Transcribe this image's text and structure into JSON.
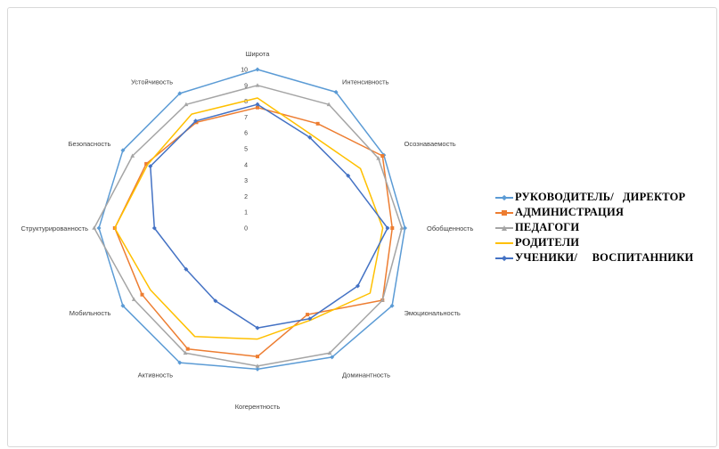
{
  "chart_data": {
    "type": "radar",
    "title": "",
    "axes": [
      "Широта",
      "Интенсивность",
      "Осознаваемость",
      "Обобщенность",
      "Эмоциональность",
      "Доминантность",
      "Когерентность",
      "Активность",
      "Мобильность",
      "Структурированность",
      "Безопасность",
      "Устойчивость"
    ],
    "ticks": [
      "0",
      "1",
      "2",
      "3",
      "4",
      "5",
      "6",
      "7",
      "8",
      "9",
      "10"
    ],
    "range": [
      0,
      10
    ],
    "grid": false,
    "legend_position": "right",
    "series": [
      {
        "name": "РУКОВОДИТЕЛЬ/   ДИРЕКТОР",
        "color": "#5b9bd5",
        "marker": "diamond",
        "values": [
          10,
          9.9,
          9.2,
          9.3,
          9.8,
          9.4,
          8.9,
          9.8,
          9.8,
          10,
          9.8,
          9.8
        ]
      },
      {
        "name": "АДМИНИСТРАЦИЯ",
        "color": "#ed7d31",
        "marker": "square",
        "values": [
          7.6,
          7.6,
          9.1,
          8.5,
          9.1,
          6.3,
          8.1,
          8.8,
          8.4,
          9,
          8.1,
          7.7
        ]
      },
      {
        "name": "ПЕДАГОГИ",
        "color": "#a5a5a5",
        "marker": "triangle",
        "values": [
          9,
          9,
          8.8,
          9.1,
          9.1,
          9.1,
          8.7,
          9.1,
          9,
          10.3,
          9.1,
          9
        ]
      },
      {
        "name": "РОДИТЕЛИ",
        "color": "#ffc000",
        "marker": "none",
        "values": [
          8.2,
          6.8,
          7.5,
          7.9,
          8.2,
          6.7,
          7,
          7.9,
          7.8,
          9,
          8,
          8.3
        ]
      },
      {
        "name": "УЧЕНИКИ/     ВОСПИТАННИКИ",
        "color": "#4472c4",
        "marker": "diamond",
        "values": [
          7.8,
          6.6,
          6.6,
          8.2,
          7.3,
          6.6,
          6.3,
          5.3,
          5.2,
          6.5,
          7.8,
          7.8
        ]
      }
    ]
  }
}
